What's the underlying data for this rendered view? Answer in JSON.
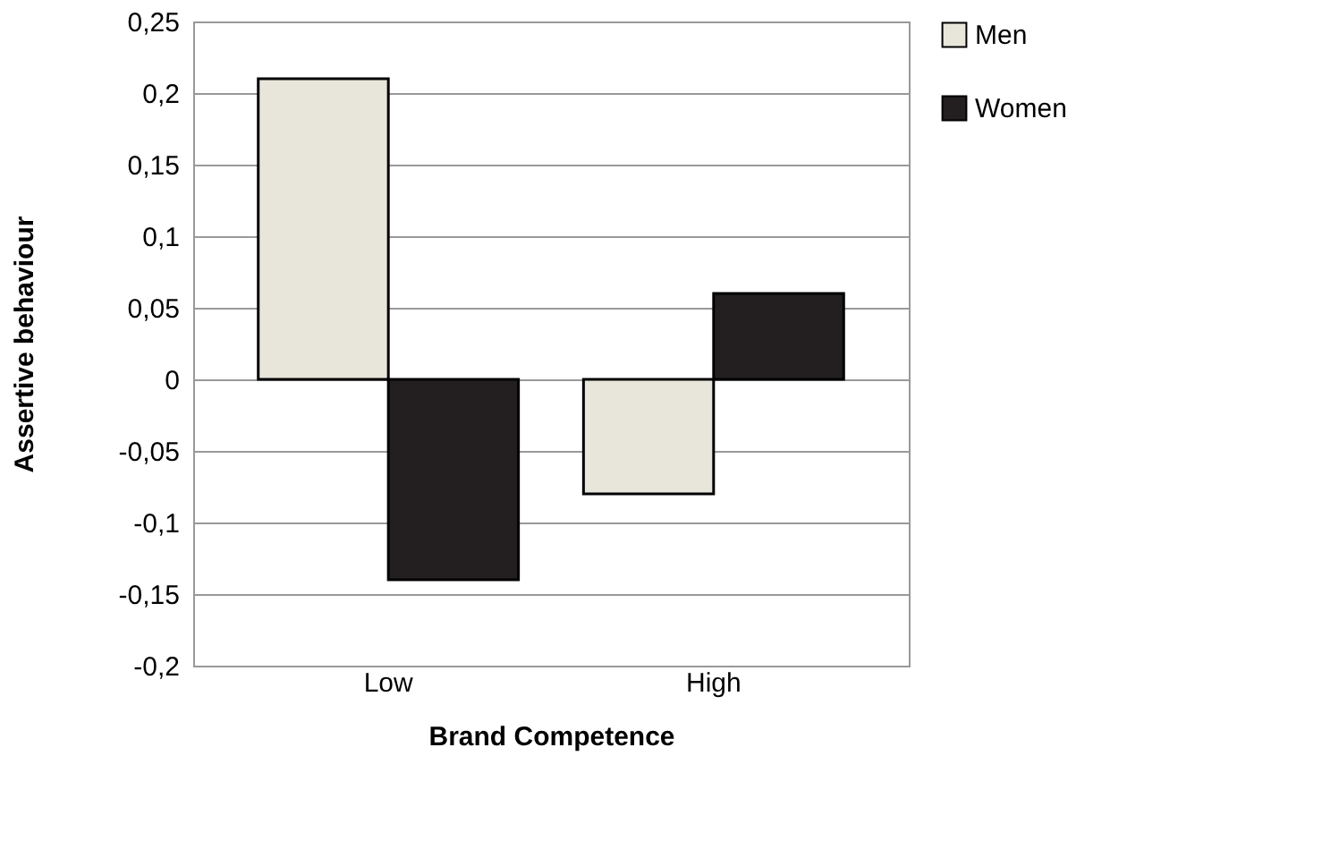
{
  "chart_data": {
    "type": "bar",
    "xlabel": "Brand Competence",
    "ylabel": "Assertive behaviour",
    "categories": [
      "Low",
      "High"
    ],
    "series": [
      {
        "name": "Men",
        "color": "#e8e6da",
        "values": [
          0.21,
          -0.08
        ]
      },
      {
        "name": "Women",
        "color": "#231f20",
        "values": [
          -0.14,
          0.06
        ]
      }
    ],
    "ylim": [
      -0.2,
      0.25
    ],
    "yticks": [
      {
        "value": -0.2,
        "label": "-0,2"
      },
      {
        "value": -0.15,
        "label": "-0,15"
      },
      {
        "value": -0.1,
        "label": "-0,1"
      },
      {
        "value": -0.05,
        "label": "-0,05"
      },
      {
        "value": 0,
        "label": "0"
      },
      {
        "value": 0.05,
        "label": "0,05"
      },
      {
        "value": 0.1,
        "label": "0,1"
      },
      {
        "value": 0.15,
        "label": "0,15"
      },
      {
        "value": 0.2,
        "label": "0,2"
      },
      {
        "value": 0.25,
        "label": "0,25"
      }
    ],
    "grid": "y",
    "legend": "top right"
  }
}
